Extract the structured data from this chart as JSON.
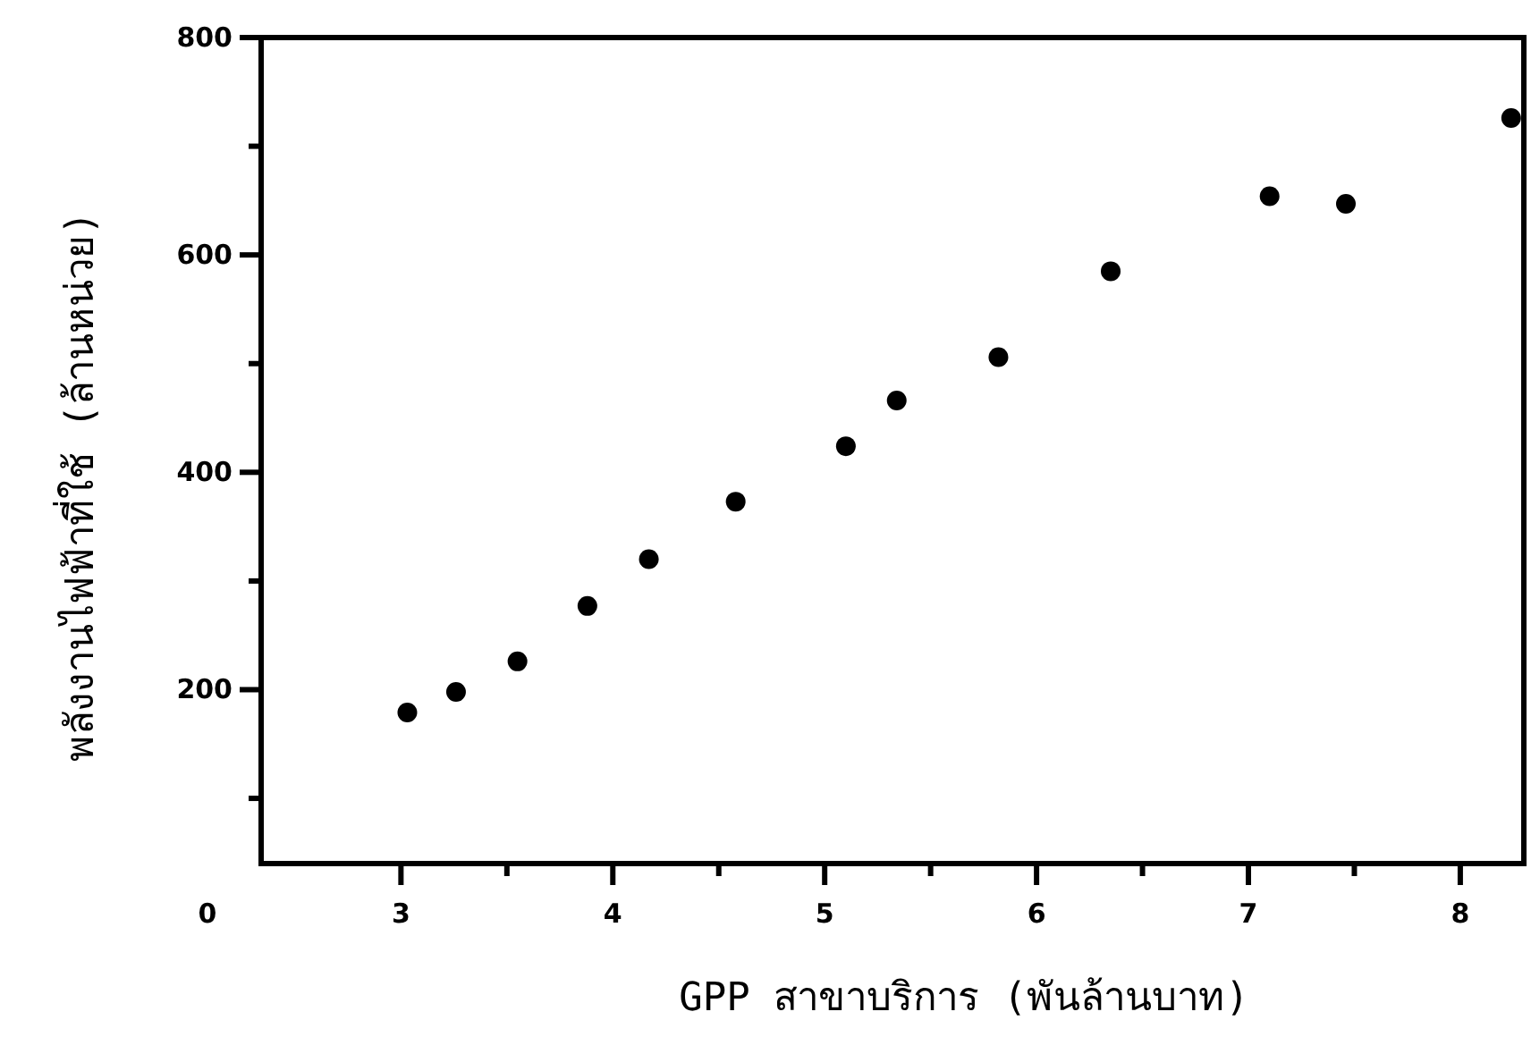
{
  "chart_data": {
    "type": "scatter",
    "xlabel": "GPP  สาขาบริการ (พันล้านบาท)",
    "ylabel": "พลังงานไฟฟ้าที่ใช้ (ล้านหน่วย)",
    "annotations": [
      "0"
    ],
    "x": [
      3.03,
      3.26,
      3.55,
      3.88,
      4.17,
      4.58,
      5.1,
      5.34,
      5.82,
      6.35,
      7.1,
      7.46,
      8.24
    ],
    "series": [
      {
        "color": "#000000",
        "values": [
          179,
          198,
          226,
          277,
          320,
          373,
          424,
          466,
          506,
          585,
          654,
          647,
          726
        ]
      }
    ],
    "marker": "circle",
    "grid": false,
    "xlim": [
      2.34,
      8.3
    ],
    "ylim": [
      40,
      800
    ],
    "xticks": [
      3,
      {
        "value": 3.5,
        "label": null
      },
      4,
      {
        "value": 4.5,
        "label": null
      },
      5,
      {
        "value": 5.5,
        "label": null
      },
      6,
      {
        "value": 6.5,
        "label": null
      },
      7,
      {
        "value": 7.5,
        "label": null
      },
      8
    ],
    "yticks": [
      {
        "value": 100,
        "label": null
      },
      200,
      {
        "value": 300,
        "label": null
      },
      400,
      {
        "value": 500,
        "label": null
      },
      600,
      {
        "value": 700,
        "label": null
      },
      800
    ]
  }
}
